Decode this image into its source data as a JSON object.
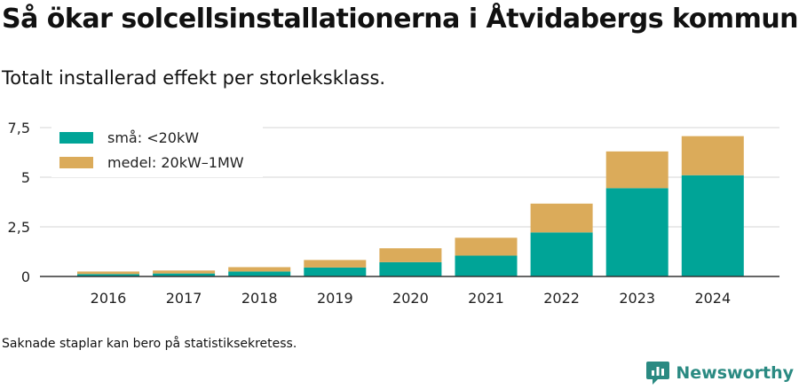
{
  "title": "Så ökar solcellsinstallationerna i Åtvidabergs kommun",
  "subtitle": "Totalt installerad effekt per storleksklass.",
  "footnote": "Saknade staplar kan bero på statistiksekretess.",
  "brand": {
    "name": "Newsworthy",
    "icon": "newsworthy-logo-icon",
    "color": "#2a8a82"
  },
  "chart_data": {
    "type": "bar",
    "stacked": true,
    "categories": [
      "2016",
      "2017",
      "2018",
      "2019",
      "2020",
      "2021",
      "2022",
      "2023",
      "2024"
    ],
    "series": [
      {
        "name": "små: <20kW",
        "color": "#00a497",
        "values": [
          0.12,
          0.15,
          0.25,
          0.45,
          0.72,
          1.05,
          2.22,
          4.45,
          5.1
        ]
      },
      {
        "name": "medel: 20kW–1MW",
        "color": "#dbab5a",
        "values": [
          0.13,
          0.15,
          0.22,
          0.38,
          0.7,
          0.9,
          1.45,
          1.85,
          1.97
        ]
      }
    ],
    "ylim": [
      0,
      7.5
    ],
    "yticks": [
      0,
      2.5,
      5,
      7.5
    ],
    "ytick_labels": [
      "0",
      "2,5",
      "5",
      "7,5"
    ],
    "xlabel": "",
    "ylabel": "",
    "grid": true,
    "legend_position": "top-left"
  }
}
